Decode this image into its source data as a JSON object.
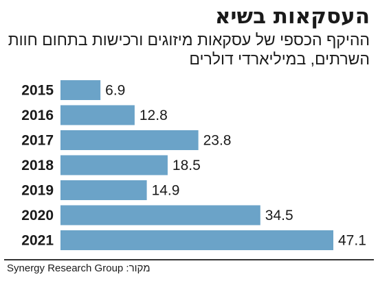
{
  "chart_data": {
    "type": "bar",
    "orientation": "horizontal",
    "title": "העסקאות בשיא",
    "subtitle": "ההיקף הכספי של עסקאות מיזוגים ורכישות בתחום חוות השרתים, במיליארדי דולרים",
    "categories": [
      "2015",
      "2016",
      "2017",
      "2018",
      "2019",
      "2020",
      "2021"
    ],
    "values": [
      6.9,
      12.8,
      23.8,
      18.5,
      14.9,
      34.5,
      47.1
    ],
    "value_labels": [
      "6.9",
      "12.8",
      "23.8",
      "18.5",
      "14.9",
      "34.5",
      "47.1"
    ],
    "xlim": [
      0,
      47.1
    ],
    "grid": false,
    "bar_color": "#6ba3c8",
    "source": "מקור: Synergy Research Group"
  }
}
